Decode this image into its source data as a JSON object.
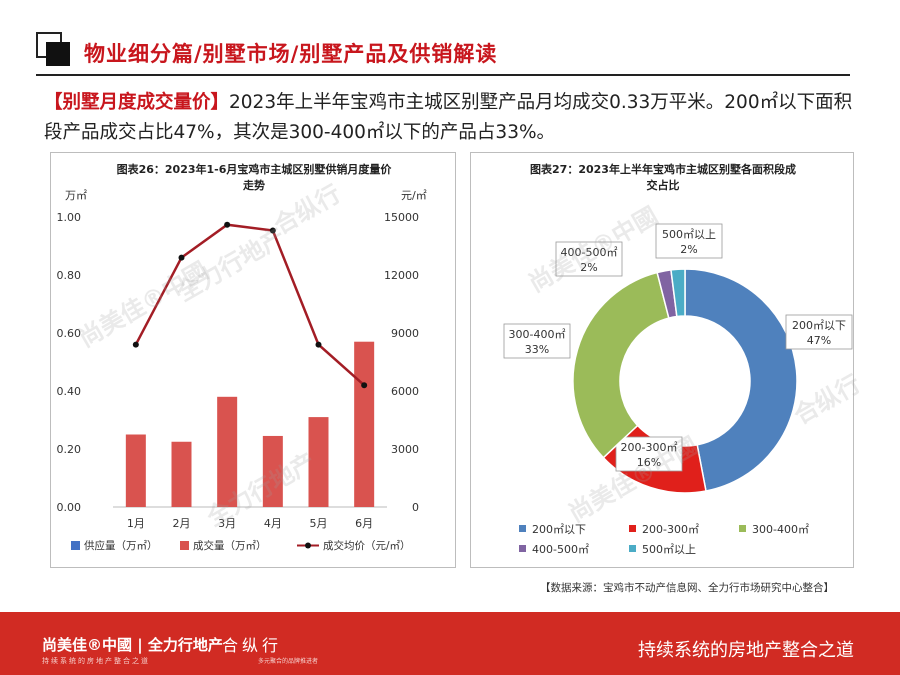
{
  "header": {
    "title": "物业细分篇/别墅市场/别墅产品及供销解读"
  },
  "lead": {
    "tag": "【别墅月度成交量价】",
    "text": "2023年上半年宝鸡市主城区别墅产品月均成交0.33万平米。200㎡以下面积段产品成交占比47%，其次是300-400㎡以下的产品占33%。"
  },
  "chart_data": [
    {
      "type": "bar",
      "title": "图表26：2023年1-6月宝鸡市主城区别墅供销月度量价走势",
      "title_lines": [
        "图表26：2023年1-6月宝鸡市主城区别墅供销月度量价",
        "走势"
      ],
      "y_left_unit": "万㎡",
      "y_right_unit": "元/㎡",
      "categories": [
        "1月",
        "2月",
        "3月",
        "4月",
        "5月",
        "6月"
      ],
      "y_left_ticks": [
        "0.00",
        "0.20",
        "0.40",
        "0.60",
        "0.80",
        "1.00"
      ],
      "y_right_ticks": [
        "0",
        "3000",
        "6000",
        "9000",
        "12000",
        "15000"
      ],
      "ylim_left": [
        0,
        1.0
      ],
      "ylim_right": [
        0,
        15000
      ],
      "series": [
        {
          "name": "供应量（万㎡）",
          "kind": "bar",
          "axis": "left",
          "color": "#4472c4",
          "values": [
            0,
            0,
            0,
            0,
            0,
            0
          ]
        },
        {
          "name": "成交量（万㎡）",
          "kind": "bar",
          "axis": "left",
          "color": "#d9534f",
          "values": [
            0.25,
            0.225,
            0.38,
            0.245,
            0.31,
            0.57
          ]
        },
        {
          "name": "成交均价（元/㎡）",
          "kind": "line",
          "axis": "right",
          "color": "#a31d25",
          "values": [
            8400,
            12900,
            14600,
            14300,
            8400,
            6300
          ]
        }
      ]
    },
    {
      "type": "pie",
      "title": "图表27：2023年上半年宝鸡市主城区别墅各面积段成交占比",
      "title_lines": [
        "图表27：2023年上半年宝鸡市主城区别墅各面积段成",
        "交占比"
      ],
      "slices": [
        {
          "label": "200㎡以下",
          "value": 47,
          "pct": "47%",
          "color": "#4f81bd"
        },
        {
          "label": "200-300㎡",
          "value": 16,
          "pct": "16%",
          "color": "#e0201b"
        },
        {
          "label": "300-400㎡",
          "value": 33,
          "pct": "33%",
          "color": "#9bbb59"
        },
        {
          "label": "400-500㎡",
          "value": 2,
          "pct": "2%",
          "color": "#8064a2"
        },
        {
          "label": "500㎡以上",
          "value": 2,
          "pct": "2%",
          "color": "#4bacc6"
        }
      ]
    }
  ],
  "source": "【数据来源：宝鸡市不动产信息网、全力行市场研究中心整合】",
  "footer": {
    "brand": "尚美佳®中國 | 全力行地产",
    "brand_sub": "持续系统的房地产整合之道",
    "logo": "合纵行",
    "logo_sub": "多元聚合的品牌推进者",
    "slogan": "持续系统的房地产整合之道"
  },
  "watermarks": [
    "尚美佳®中國",
    "全力行地产",
    "合纵行"
  ]
}
